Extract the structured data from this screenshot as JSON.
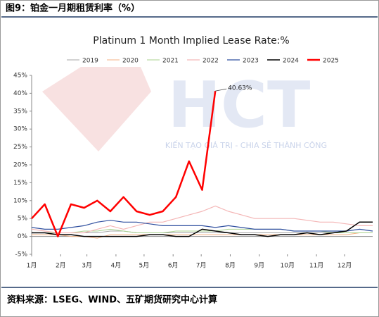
{
  "header": {
    "title": "图9：铂金一月期租赁利率（%）"
  },
  "footer": {
    "source": "资料来源：LSEG、WIND、五矿期货研究中心计算"
  },
  "watermark": {
    "logo": "HCT",
    "tagline": "KIẾN TẠO GIÁ TRỊ - CHIA SẺ THÀNH CÔNG"
  },
  "chart_data": {
    "type": "line",
    "title": "Platinum 1 Month Implied Lease Rate:%",
    "x": [
      1,
      15,
      29,
      43,
      57,
      71,
      85,
      99,
      113,
      127,
      141,
      155,
      169,
      183,
      197,
      211,
      225,
      239,
      253,
      267,
      281,
      295,
      309,
      323,
      337,
      351,
      365
    ],
    "xlim": [
      1,
      365
    ],
    "xticks": [
      {
        "value": 1,
        "label": "1月"
      },
      {
        "value": 32,
        "label": "2月"
      },
      {
        "value": 60,
        "label": "3月"
      },
      {
        "value": 91,
        "label": "4月"
      },
      {
        "value": 121,
        "label": "5月"
      },
      {
        "value": 152,
        "label": "6月"
      },
      {
        "value": 182,
        "label": "7月"
      },
      {
        "value": 213,
        "label": "8月"
      },
      {
        "value": 244,
        "label": "9月"
      },
      {
        "value": 274,
        "label": "10月"
      },
      {
        "value": 305,
        "label": "11月"
      },
      {
        "value": 335,
        "label": "12月"
      }
    ],
    "ylim": [
      -5,
      45
    ],
    "yticks": [
      {
        "value": -5,
        "label": "-5%"
      },
      {
        "value": 0,
        "label": "0%"
      },
      {
        "value": 5,
        "label": "5%"
      },
      {
        "value": 10,
        "label": "10%"
      },
      {
        "value": 15,
        "label": "15%"
      },
      {
        "value": 20,
        "label": "20%"
      },
      {
        "value": 25,
        "label": "25%"
      },
      {
        "value": 30,
        "label": "30%"
      },
      {
        "value": 35,
        "label": "35%"
      },
      {
        "value": 40,
        "label": "40%"
      },
      {
        "value": 45,
        "label": "45%"
      }
    ],
    "series": [
      {
        "name": "2019",
        "color": "#a6a6a6",
        "width": 1,
        "values": [
          1,
          1,
          1,
          1,
          1,
          1,
          1.5,
          1.5,
          1,
          1,
          1,
          1,
          1,
          1,
          1,
          1,
          1,
          1,
          1,
          1,
          1,
          1,
          1,
          1,
          1,
          1,
          1
        ]
      },
      {
        "name": "2020",
        "color": "#f4b183",
        "width": 1,
        "values": [
          0.5,
          0.5,
          0.5,
          0,
          0,
          -0.5,
          0.5,
          0.5,
          0.5,
          0.5,
          0.5,
          0.5,
          0.5,
          0.5,
          0.5,
          0.5,
          0.5,
          0.5,
          0.5,
          0.5,
          0.5,
          0.5,
          0.5,
          0.5,
          0.5,
          1,
          1
        ]
      },
      {
        "name": "2021",
        "color": "#a9d18e",
        "width": 1,
        "values": [
          1,
          1,
          1,
          1,
          1.5,
          1.5,
          2,
          1.5,
          1,
          1,
          1,
          1.5,
          1.5,
          1.5,
          1.5,
          2,
          2,
          2,
          2,
          2,
          1.5,
          1.5,
          1.5,
          1,
          1,
          1,
          1
        ]
      },
      {
        "name": "2022",
        "color": "#f4b6b6",
        "width": 1.2,
        "values": [
          2,
          1.5,
          1,
          1,
          1,
          2,
          3,
          2,
          3,
          4,
          4,
          5,
          6,
          7,
          8.5,
          7,
          6,
          5,
          5,
          5,
          5,
          4.5,
          4,
          4,
          3.5,
          3,
          3
        ]
      },
      {
        "name": "2023",
        "color": "#2f4f9f",
        "width": 1.2,
        "values": [
          2.5,
          2,
          2,
          2.5,
          3,
          4,
          4.5,
          4,
          4,
          3.5,
          3,
          3,
          3,
          3,
          2.5,
          3,
          2.5,
          2,
          2,
          2,
          1.5,
          1.5,
          1.5,
          1.5,
          1.5,
          2,
          1.5
        ]
      },
      {
        "name": "2024",
        "color": "#000000",
        "width": 1.5,
        "values": [
          1,
          1,
          0.5,
          0.5,
          0,
          0,
          0,
          0,
          0,
          0.5,
          0.5,
          0,
          0,
          2,
          1.5,
          1,
          0.5,
          0.5,
          0,
          0.5,
          0.5,
          1,
          0.5,
          1,
          1.5,
          4,
          4
        ]
      },
      {
        "name": "2025",
        "color": "#ff0000",
        "width": 2.5,
        "values": [
          5,
          9,
          0,
          9,
          8,
          10,
          7,
          11,
          7,
          6,
          7,
          11,
          21,
          13,
          40.63,
          null,
          null,
          null,
          null,
          null,
          null,
          null,
          null,
          null,
          null,
          null,
          null
        ]
      }
    ],
    "annotations": [
      {
        "text": "40.63%",
        "series": 6,
        "index": 14
      }
    ]
  }
}
